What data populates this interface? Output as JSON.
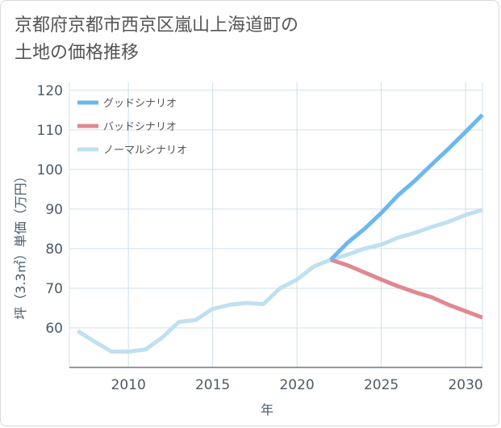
{
  "title_lines": [
    "京都府京都市西京区嵐山上海道町の",
    "土地の価格推移"
  ],
  "chart_data": {
    "type": "line",
    "title": "京都府京都市西京区嵐山上海道町の土地の価格推移",
    "xlabel": "年",
    "ylabel": "坪（3.3㎡）単価（万円）",
    "xlim": [
      2006.5,
      2031
    ],
    "ylim": [
      50,
      122
    ],
    "xticks": [
      2010,
      2015,
      2020,
      2025,
      2030
    ],
    "yticks": [
      60,
      70,
      80,
      90,
      100,
      110,
      120
    ],
    "grid": true,
    "legend_position": "top-left",
    "series": [
      {
        "name": "グッドシナリオ",
        "color": "#6cb8ee",
        "x": [
          2022,
          2023,
          2024,
          2025,
          2026,
          2027,
          2028,
          2029,
          2030,
          2031
        ],
        "y": [
          77.2,
          81.5,
          85.0,
          89.0,
          93.5,
          97.2,
          101.3,
          105.3,
          109.5,
          113.8
        ]
      },
      {
        "name": "バッドシナリオ",
        "color": "#e08890",
        "x": [
          2022,
          2023,
          2024,
          2025,
          2026,
          2027,
          2028,
          2029,
          2030,
          2031
        ],
        "y": [
          77.2,
          75.8,
          74.0,
          72.2,
          70.5,
          69.0,
          67.7,
          65.8,
          64.2,
          62.6
        ]
      },
      {
        "name": "ノーマルシナリオ",
        "color": "#bfe0f0",
        "x": [
          2007,
          2008,
          2009,
          2010,
          2011,
          2012,
          2013,
          2014,
          2015,
          2016,
          2017,
          2018,
          2019,
          2020,
          2021,
          2022,
          2023,
          2024,
          2025,
          2026,
          2027,
          2028,
          2029,
          2030,
          2031
        ],
        "y": [
          59.2,
          56.5,
          54.0,
          54.0,
          54.5,
          57.5,
          61.5,
          62.0,
          64.8,
          65.8,
          66.3,
          66.0,
          70.0,
          72.2,
          75.5,
          77.2,
          78.5,
          80.0,
          81.0,
          82.8,
          84.0,
          85.5,
          86.8,
          88.5,
          89.8
        ]
      }
    ]
  }
}
